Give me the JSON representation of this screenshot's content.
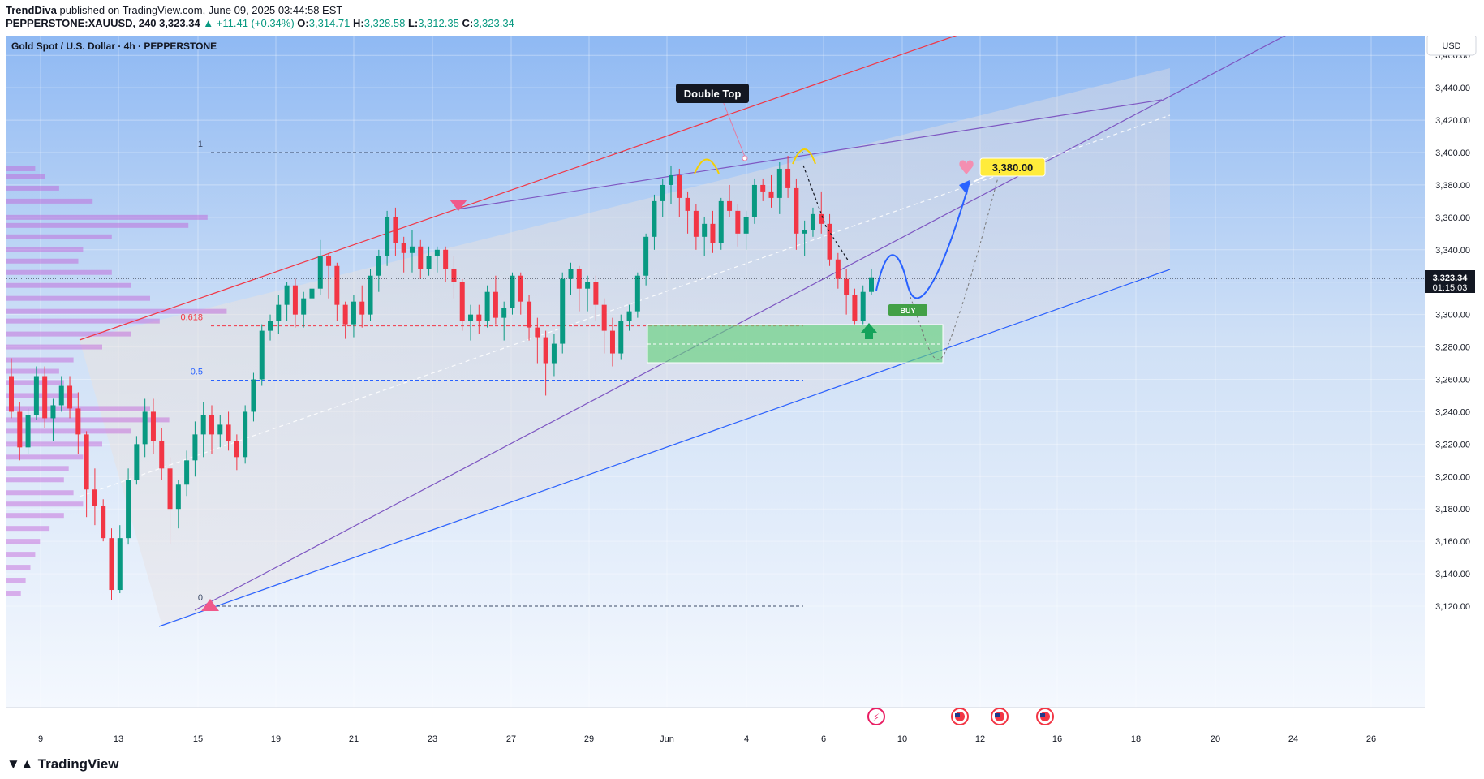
{
  "header": {
    "author": "TrendDiva",
    "published": "published on TradingView.com, June 09, 2025 03:44:58 EST",
    "symbol": "PEPPERSTONE:XAUUSD, 240",
    "last": "3,323.34",
    "change": "+11.41 (+0.34%)",
    "open_label": "O:",
    "open": "3,314.71",
    "high_label": "H:",
    "high": "3,328.58",
    "low_label": "L:",
    "low": "3,312.35",
    "close_label": "C:",
    "close": "3,323.34"
  },
  "chart_title": "Gold Spot / U.S. Dollar · 4h · PEPPERSTONE",
  "currency": "USD",
  "price_tag": {
    "price": "3,323.34",
    "countdown": "01:15:03"
  },
  "annotations": {
    "double_top": "Double Top",
    "target": "3,380.00",
    "buy": "BUY",
    "fib_1": "1",
    "fib_0618": "0.618",
    "fib_05": "0.5",
    "fib_0": "0"
  },
  "footer": {
    "brand": "TradingView"
  },
  "colors": {
    "bull": "#26a69a",
    "bear": "#ef5350",
    "candle_up": "#089981",
    "candle_down": "#f23645",
    "channel_red": "#f23645",
    "channel_purple": "#7e57c2",
    "channel_blue": "#2962ff",
    "zone": "#66d17c"
  },
  "chart_data": {
    "type": "candlestick",
    "title": "Gold Spot / U.S. Dollar · 4h · PEPPERSTONE",
    "y_ticks": [
      "3,460.00",
      "3,440.00",
      "3,420.00",
      "3,400.00",
      "3,380.00",
      "3,360.00",
      "3,340.00",
      "3,320.00",
      "3,300.00",
      "3,280.00",
      "3,260.00",
      "3,240.00",
      "3,220.00",
      "3,200.00",
      "3,180.00",
      "3,160.00",
      "3,140.00",
      "3,120.00"
    ],
    "x_ticks": [
      "9",
      "13",
      "15",
      "19",
      "21",
      "23",
      "27",
      "29",
      "Jun",
      "4",
      "6",
      "10",
      "12",
      "16",
      "18",
      "20",
      "24",
      "26"
    ],
    "ylim": [
      3110,
      3466
    ],
    "last_price": 3323.34,
    "fib_levels": [
      {
        "label": "1",
        "price": 3400
      },
      {
        "label": "0.618",
        "price": 3293
      },
      {
        "label": "0.5",
        "price": 3259.5
      },
      {
        "label": "0",
        "price": 3120
      }
    ],
    "target_price": 3380,
    "buy_zone": [
      3270,
      3294
    ],
    "candles": [
      [
        3262,
        3273,
        3236,
        3240
      ],
      [
        3240,
        3246,
        3210,
        3218
      ],
      [
        3218,
        3242,
        3214,
        3238
      ],
      [
        3238,
        3268,
        3235,
        3262
      ],
      [
        3262,
        3268,
        3230,
        3236
      ],
      [
        3236,
        3248,
        3222,
        3244
      ],
      [
        3244,
        3262,
        3240,
        3256
      ],
      [
        3256,
        3262,
        3236,
        3242
      ],
      [
        3242,
        3252,
        3214,
        3226
      ],
      [
        3226,
        3228,
        3175,
        3192
      ],
      [
        3192,
        3205,
        3170,
        3182
      ],
      [
        3182,
        3186,
        3160,
        3162
      ],
      [
        3162,
        3168,
        3124,
        3130
      ],
      [
        3130,
        3170,
        3128,
        3162
      ],
      [
        3162,
        3205,
        3158,
        3198
      ],
      [
        3198,
        3225,
        3195,
        3220
      ],
      [
        3220,
        3248,
        3212,
        3240
      ],
      [
        3240,
        3248,
        3214,
        3222
      ],
      [
        3222,
        3230,
        3198,
        3205
      ],
      [
        3205,
        3212,
        3158,
        3180
      ],
      [
        3180,
        3198,
        3168,
        3195
      ],
      [
        3195,
        3216,
        3188,
        3210
      ],
      [
        3210,
        3234,
        3200,
        3226
      ],
      [
        3226,
        3246,
        3212,
        3238
      ],
      [
        3238,
        3244,
        3214,
        3226
      ],
      [
        3226,
        3238,
        3218,
        3232
      ],
      [
        3232,
        3240,
        3216,
        3222
      ],
      [
        3222,
        3226,
        3204,
        3212
      ],
      [
        3212,
        3244,
        3208,
        3240
      ],
      [
        3240,
        3264,
        3234,
        3260
      ],
      [
        3260,
        3294,
        3256,
        3290
      ],
      [
        3290,
        3300,
        3284,
        3296
      ],
      [
        3296,
        3312,
        3288,
        3306
      ],
      [
        3306,
        3320,
        3296,
        3318
      ],
      [
        3318,
        3322,
        3292,
        3300
      ],
      [
        3300,
        3314,
        3292,
        3310
      ],
      [
        3310,
        3324,
        3304,
        3316
      ],
      [
        3316,
        3346,
        3312,
        3336
      ],
      [
        3336,
        3338,
        3310,
        3330
      ],
      [
        3330,
        3332,
        3296,
        3306
      ],
      [
        3306,
        3308,
        3285,
        3294
      ],
      [
        3294,
        3312,
        3286,
        3308
      ],
      [
        3308,
        3318,
        3292,
        3300
      ],
      [
        3300,
        3328,
        3296,
        3324
      ],
      [
        3324,
        3340,
        3314,
        3336
      ],
      [
        3336,
        3364,
        3330,
        3360
      ],
      [
        3360,
        3366,
        3336,
        3344
      ],
      [
        3344,
        3348,
        3326,
        3338
      ],
      [
        3338,
        3352,
        3326,
        3342
      ],
      [
        3342,
        3346,
        3322,
        3328
      ],
      [
        3328,
        3342,
        3324,
        3336
      ],
      [
        3336,
        3342,
        3326,
        3340
      ],
      [
        3340,
        3342,
        3320,
        3328
      ],
      [
        3328,
        3336,
        3310,
        3320
      ],
      [
        3320,
        3322,
        3290,
        3296
      ],
      [
        3296,
        3306,
        3284,
        3300
      ],
      [
        3300,
        3306,
        3288,
        3296
      ],
      [
        3296,
        3318,
        3292,
        3314
      ],
      [
        3314,
        3324,
        3294,
        3298
      ],
      [
        3298,
        3308,
        3284,
        3304
      ],
      [
        3304,
        3326,
        3300,
        3324
      ],
      [
        3324,
        3326,
        3300,
        3308
      ],
      [
        3308,
        3312,
        3284,
        3292
      ],
      [
        3292,
        3298,
        3270,
        3286
      ],
      [
        3286,
        3290,
        3250,
        3270
      ],
      [
        3270,
        3288,
        3262,
        3282
      ],
      [
        3282,
        3326,
        3276,
        3322
      ],
      [
        3322,
        3332,
        3312,
        3328
      ],
      [
        3328,
        3330,
        3302,
        3316
      ],
      [
        3316,
        3324,
        3302,
        3320
      ],
      [
        3320,
        3324,
        3296,
        3306
      ],
      [
        3306,
        3310,
        3276,
        3290
      ],
      [
        3290,
        3298,
        3268,
        3276
      ],
      [
        3276,
        3300,
        3272,
        3296
      ],
      [
        3296,
        3306,
        3290,
        3302
      ],
      [
        3302,
        3326,
        3298,
        3324
      ],
      [
        3324,
        3350,
        3318,
        3348
      ],
      [
        3348,
        3374,
        3340,
        3370
      ],
      [
        3370,
        3384,
        3360,
        3380
      ],
      [
        3380,
        3392,
        3368,
        3386
      ],
      [
        3386,
        3390,
        3360,
        3372
      ],
      [
        3372,
        3376,
        3350,
        3364
      ],
      [
        3364,
        3368,
        3340,
        3348
      ],
      [
        3348,
        3360,
        3336,
        3356
      ],
      [
        3356,
        3364,
        3338,
        3344
      ],
      [
        3344,
        3372,
        3340,
        3370
      ],
      [
        3370,
        3380,
        3360,
        3364
      ],
      [
        3364,
        3368,
        3342,
        3350
      ],
      [
        3350,
        3364,
        3340,
        3360
      ],
      [
        3360,
        3384,
        3356,
        3380
      ],
      [
        3380,
        3384,
        3370,
        3376
      ],
      [
        3376,
        3386,
        3366,
        3372
      ],
      [
        3372,
        3394,
        3362,
        3390
      ],
      [
        3390,
        3398,
        3372,
        3378
      ],
      [
        3378,
        3384,
        3340,
        3350
      ],
      [
        3350,
        3358,
        3336,
        3352
      ],
      [
        3352,
        3366,
        3348,
        3362
      ],
      [
        3362,
        3376,
        3350,
        3356
      ],
      [
        3356,
        3362,
        3330,
        3334
      ],
      [
        3334,
        3338,
        3316,
        3322
      ],
      [
        3322,
        3328,
        3300,
        3312
      ],
      [
        3312,
        3316,
        3294,
        3296
      ],
      [
        3296,
        3318,
        3294,
        3314
      ],
      [
        3314,
        3328,
        3312,
        3323
      ]
    ]
  }
}
